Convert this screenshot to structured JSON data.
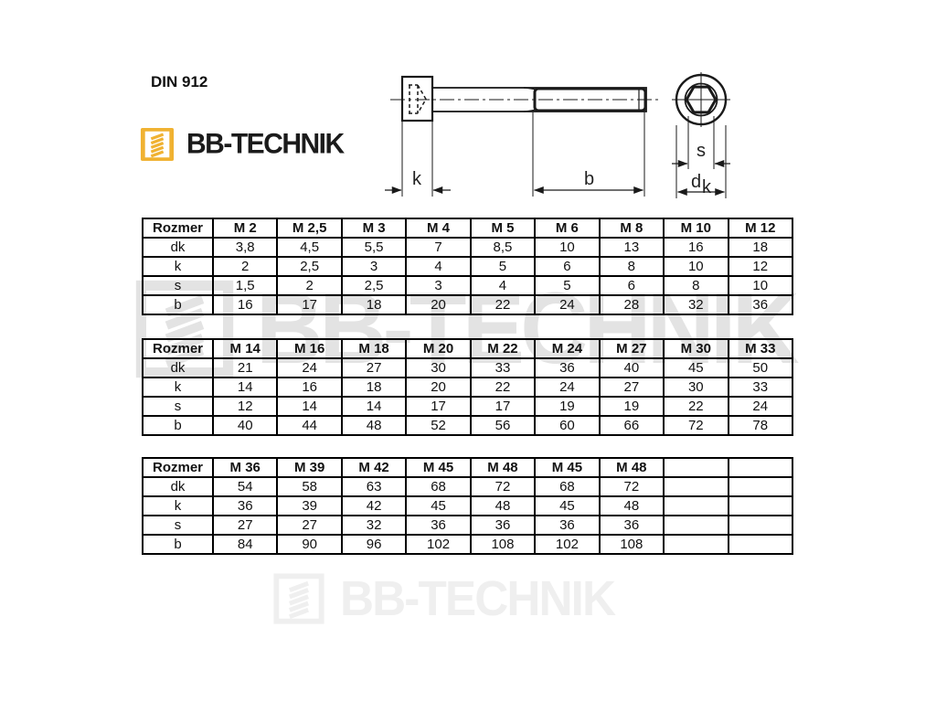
{
  "page": {
    "title": "DIN 912"
  },
  "brand": {
    "name": "BB-TECHNIK",
    "accent_color": "#F0B232",
    "text_color": "#1b1b1b"
  },
  "drawing": {
    "labels": {
      "k": "k",
      "b": "b",
      "s": "s",
      "dk_main": "d",
      "dk_sub": "k"
    }
  },
  "watermarks": {
    "middle": {
      "text": "BB-TECHNIK",
      "color": "#e3e3e3"
    },
    "bottom": {
      "text": "BB-TECHNIK",
      "color": "#efefef"
    }
  },
  "tables": [
    {
      "header": [
        "Rozmer",
        "M 2",
        "M 2,5",
        "M 3",
        "M 4",
        "M 5",
        "M 6",
        "M 8",
        "M 10",
        "M 12"
      ],
      "rows": [
        [
          "dk",
          "3,8",
          "4,5",
          "5,5",
          "7",
          "8,5",
          "10",
          "13",
          "16",
          "18"
        ],
        [
          "k",
          "2",
          "2,5",
          "3",
          "4",
          "5",
          "6",
          "8",
          "10",
          "12"
        ],
        [
          "s",
          "1,5",
          "2",
          "2,5",
          "3",
          "4",
          "5",
          "6",
          "8",
          "10"
        ],
        [
          "b",
          "16",
          "17",
          "18",
          "20",
          "22",
          "24",
          "28",
          "32",
          "36"
        ]
      ]
    },
    {
      "header": [
        "Rozmer",
        "M 14",
        "M 16",
        "M 18",
        "M 20",
        "M 22",
        "M 24",
        "M 27",
        "M 30",
        "M 33"
      ],
      "rows": [
        [
          "dk",
          "21",
          "24",
          "27",
          "30",
          "33",
          "36",
          "40",
          "45",
          "50"
        ],
        [
          "k",
          "14",
          "16",
          "18",
          "20",
          "22",
          "24",
          "27",
          "30",
          "33"
        ],
        [
          "s",
          "12",
          "14",
          "14",
          "17",
          "17",
          "19",
          "19",
          "22",
          "24"
        ],
        [
          "b",
          "40",
          "44",
          "48",
          "52",
          "56",
          "60",
          "66",
          "72",
          "78"
        ]
      ]
    },
    {
      "header": [
        "Rozmer",
        "M 36",
        "M 39",
        "M 42",
        "M 45",
        "M 48",
        "M 45",
        "M 48",
        "",
        ""
      ],
      "rows": [
        [
          "dk",
          "54",
          "58",
          "63",
          "68",
          "72",
          "68",
          "72",
          "",
          ""
        ],
        [
          "k",
          "36",
          "39",
          "42",
          "45",
          "48",
          "45",
          "48",
          "",
          ""
        ],
        [
          "s",
          "27",
          "27",
          "32",
          "36",
          "36",
          "36",
          "36",
          "",
          ""
        ],
        [
          "b",
          "84",
          "90",
          "96",
          "102",
          "108",
          "102",
          "108",
          "",
          ""
        ]
      ]
    }
  ]
}
